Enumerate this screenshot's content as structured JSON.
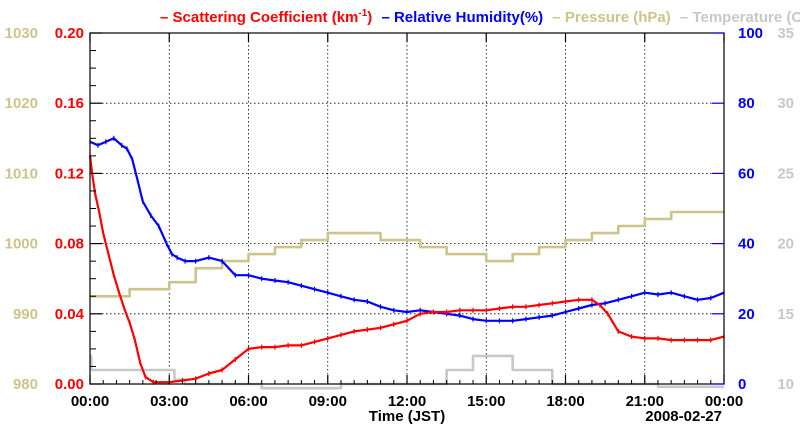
{
  "chart_data": {
    "type": "line",
    "title_parts": [
      {
        "dash": "–",
        "text": "Scattering Coefficient (km",
        "sup": "-1",
        "after": ")",
        "color": "#ff0000"
      },
      {
        "dash": "–",
        "text": "Relative Humidity(%)",
        "color": "#0000ff"
      },
      {
        "dash": "–",
        "text": "Pressure (hPa)",
        "color": "#cdc48b"
      },
      {
        "dash": "–",
        "text": "Temperature (C)",
        "color": "#c8c8c8"
      }
    ],
    "xlabel": "Time (JST)",
    "date_label": "2008-02-27",
    "x_ticks": [
      "00:00",
      "03:00",
      "06:00",
      "09:00",
      "12:00",
      "15:00",
      "18:00",
      "21:00",
      "00:00"
    ],
    "xlim": [
      0,
      24
    ],
    "axes": {
      "pressure": {
        "ticks": [
          "980",
          "990",
          "1000",
          "1010",
          "1020",
          "1030"
        ],
        "range": [
          980,
          1030
        ],
        "color": "#cdc48b"
      },
      "scattering": {
        "ticks": [
          "0.00",
          "0.04",
          "0.08",
          "0.12",
          "0.16",
          "0.20"
        ],
        "range": [
          0,
          0.2
        ],
        "color": "#ff0000"
      },
      "humidity": {
        "ticks": [
          "0",
          "20",
          "40",
          "60",
          "80",
          "100"
        ],
        "range": [
          0,
          100
        ],
        "color": "#0000ff"
      },
      "temperature": {
        "ticks": [
          "10",
          "15",
          "20",
          "25",
          "30",
          "35"
        ],
        "range": [
          10,
          35
        ],
        "color": "#c8c8c8"
      }
    },
    "series": [
      {
        "name": "Temperature",
        "axis": "temperature",
        "color": "#c8c8c8",
        "x": [
          0,
          0.05,
          0.05,
          3.2,
          3.2,
          3.6,
          3.6,
          6.5,
          6.5,
          9.5,
          9.5,
          13.5,
          13.5,
          14.5,
          14.5,
          16.0,
          16.0,
          17.5,
          17.5,
          21.5,
          21.5,
          24
        ],
        "y": [
          12.0,
          12.0,
          11.0,
          11.0,
          10.3,
          10.3,
          10.0,
          10.0,
          9.7,
          9.7,
          10.0,
          10.0,
          11.0,
          11.0,
          12.0,
          12.0,
          11.0,
          11.0,
          10.0,
          10.0,
          9.8,
          9.8
        ]
      },
      {
        "name": "Pressure (hPa)",
        "axis": "pressure",
        "color": "#cdc48b",
        "x": [
          0,
          1.5,
          1.5,
          3.0,
          3.0,
          4.0,
          4.0,
          5.0,
          5.0,
          6.0,
          6.0,
          7.0,
          7.0,
          8.0,
          8.0,
          9.0,
          9.0,
          11.0,
          11.0,
          12.5,
          12.5,
          13.5,
          13.5,
          15.0,
          15.0,
          16.0,
          16.0,
          17.0,
          17.0,
          18.0,
          18.0,
          19.0,
          19.0,
          20.0,
          20.0,
          21.0,
          21.0,
          22.0,
          22.0,
          24
        ],
        "y": [
          992.5,
          992.5,
          993.5,
          993.5,
          994.5,
          994.5,
          996.5,
          996.5,
          997.5,
          997.5,
          998.5,
          998.5,
          999.5,
          999.5,
          1000.5,
          1000.5,
          1001.5,
          1001.5,
          1000.5,
          1000.5,
          999.5,
          999.5,
          998.5,
          998.5,
          997.5,
          997.5,
          998.5,
          998.5,
          999.5,
          999.5,
          1000.5,
          1000.5,
          1001.5,
          1001.5,
          1002.5,
          1002.5,
          1003.5,
          1003.5,
          1004.5,
          1004.5
        ]
      },
      {
        "name": "Relative Humidity(%)",
        "axis": "humidity",
        "color": "#0000ff",
        "x": [
          0,
          0.3,
          0.6,
          0.9,
          1.2,
          1.4,
          1.6,
          1.8,
          2.0,
          2.3,
          2.6,
          2.9,
          3.1,
          3.3,
          3.6,
          4.0,
          4.5,
          5.0,
          5.5,
          6.0,
          6.5,
          7.0,
          7.5,
          8.0,
          8.5,
          9.0,
          9.5,
          10.0,
          10.5,
          11.0,
          11.5,
          12.0,
          12.5,
          13.0,
          13.5,
          14.0,
          14.5,
          15.0,
          15.5,
          16.0,
          16.5,
          17.0,
          17.5,
          18.0,
          18.5,
          19.0,
          19.5,
          20.0,
          20.5,
          21.0,
          21.5,
          22.0,
          22.5,
          23.0,
          23.5,
          24.0
        ],
        "y": [
          69,
          68,
          69,
          70,
          68,
          67,
          64,
          58,
          52,
          48,
          45,
          40,
          37,
          36,
          35,
          35,
          36,
          35,
          31,
          31,
          30,
          29.5,
          29,
          28,
          27,
          26,
          25,
          24,
          23.5,
          22,
          21,
          20.5,
          21,
          20.5,
          20,
          19.5,
          18.5,
          18,
          18,
          18,
          18.5,
          19,
          19.5,
          20.5,
          21.5,
          22.5,
          23,
          24,
          25,
          26,
          25.5,
          26,
          25,
          24,
          24.5,
          26
        ]
      },
      {
        "name": "Scattering Coefficient (km-1)",
        "axis": "scattering",
        "color": "#ff0000",
        "x": [
          0,
          0.1,
          0.2,
          0.35,
          0.5,
          0.7,
          0.9,
          1.1,
          1.3,
          1.5,
          1.7,
          1.9,
          2.1,
          2.4,
          3.0,
          3.5,
          4.0,
          4.5,
          5.0,
          5.5,
          6.0,
          6.5,
          7.0,
          7.5,
          8.0,
          8.5,
          9.0,
          9.5,
          10.0,
          10.5,
          11.0,
          11.5,
          12.0,
          12.5,
          13.0,
          13.5,
          14.0,
          14.5,
          15.0,
          15.5,
          16.0,
          16.5,
          17.0,
          17.5,
          18.0,
          18.5,
          19.0,
          19.3,
          19.6,
          20.0,
          20.5,
          21.0,
          21.5,
          22.0,
          22.5,
          23.0,
          23.5,
          24.0
        ],
        "y": [
          0.13,
          0.118,
          0.108,
          0.098,
          0.086,
          0.074,
          0.062,
          0.052,
          0.043,
          0.035,
          0.025,
          0.012,
          0.004,
          0.001,
          0.001,
          0.002,
          0.003,
          0.006,
          0.008,
          0.014,
          0.02,
          0.021,
          0.021,
          0.022,
          0.022,
          0.024,
          0.026,
          0.028,
          0.03,
          0.031,
          0.032,
          0.034,
          0.036,
          0.04,
          0.041,
          0.041,
          0.042,
          0.042,
          0.042,
          0.043,
          0.044,
          0.044,
          0.045,
          0.046,
          0.047,
          0.048,
          0.048,
          0.045,
          0.04,
          0.03,
          0.027,
          0.026,
          0.026,
          0.025,
          0.025,
          0.025,
          0.025,
          0.027
        ]
      }
    ]
  }
}
